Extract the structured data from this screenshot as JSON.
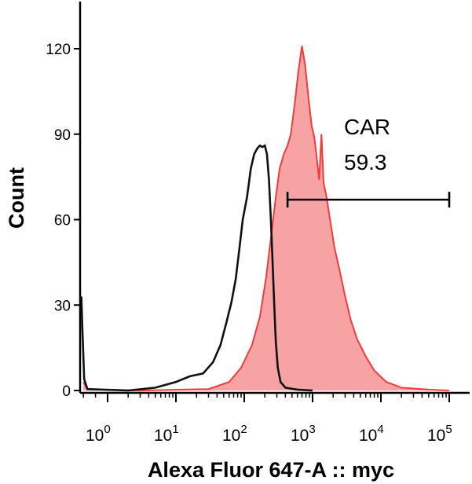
{
  "chart_data": {
    "type": "area",
    "title": "",
    "xlabel": "Alexa Fluor 647-A :: myc",
    "ylabel": "Count",
    "x_scale": "biexponential",
    "ylim": [
      0,
      140
    ],
    "y_ticks": [
      0,
      30,
      60,
      90,
      120
    ],
    "x_ticks": [
      {
        "value": 1,
        "base": "10",
        "exp": "0"
      },
      {
        "value": 10,
        "base": "10",
        "exp": "1"
      },
      {
        "value": 100,
        "base": "10",
        "exp": "2"
      },
      {
        "value": 1000,
        "base": "10",
        "exp": "3"
      },
      {
        "value": 10000,
        "base": "10",
        "exp": "4"
      },
      {
        "value": 100000,
        "base": "10",
        "exp": "5"
      }
    ],
    "series": [
      {
        "style": "filled",
        "color": "#f03c3c",
        "fill": "#f7a3a3",
        "points": [
          [
            0.4,
            3
          ],
          [
            0.5,
            0.5
          ],
          [
            3,
            0
          ],
          [
            30,
            0.5
          ],
          [
            60,
            3
          ],
          [
            90,
            8
          ],
          [
            130,
            16
          ],
          [
            170,
            26
          ],
          [
            210,
            40
          ],
          [
            250,
            55
          ],
          [
            290,
            68
          ],
          [
            330,
            78
          ],
          [
            380,
            83
          ],
          [
            430,
            86
          ],
          [
            480,
            90
          ],
          [
            550,
            101
          ],
          [
            620,
            112
          ],
          [
            700,
            121
          ],
          [
            780,
            114
          ],
          [
            870,
            103
          ],
          [
            970,
            93
          ],
          [
            1060,
            89
          ],
          [
            1160,
            81
          ],
          [
            1250,
            74
          ],
          [
            1350,
            90
          ],
          [
            1450,
            73
          ],
          [
            1600,
            68
          ],
          [
            1800,
            60
          ],
          [
            2100,
            50
          ],
          [
            2500,
            42
          ],
          [
            3000,
            33
          ],
          [
            3600,
            25
          ],
          [
            4500,
            18
          ],
          [
            6000,
            12
          ],
          [
            8000,
            7
          ],
          [
            12000,
            3
          ],
          [
            20000,
            1
          ],
          [
            50000,
            0.3
          ],
          [
            100000,
            0
          ]
        ]
      },
      {
        "style": "outline",
        "color": "#111111",
        "points": [
          [
            0.35,
            33
          ],
          [
            0.38,
            20
          ],
          [
            0.42,
            4
          ],
          [
            0.5,
            0.5
          ],
          [
            2,
            0
          ],
          [
            5,
            1
          ],
          [
            10,
            3
          ],
          [
            16,
            5
          ],
          [
            25,
            6
          ],
          [
            35,
            10
          ],
          [
            45,
            16
          ],
          [
            55,
            24
          ],
          [
            65,
            31
          ],
          [
            75,
            39
          ],
          [
            85,
            50
          ],
          [
            95,
            60
          ],
          [
            110,
            68
          ],
          [
            125,
            78
          ],
          [
            140,
            83
          ],
          [
            155,
            85
          ],
          [
            170,
            86
          ],
          [
            185,
            85.5
          ],
          [
            200,
            86
          ],
          [
            215,
            83
          ],
          [
            230,
            74
          ],
          [
            245,
            60
          ],
          [
            260,
            45
          ],
          [
            275,
            30
          ],
          [
            290,
            17
          ],
          [
            310,
            8
          ],
          [
            340,
            3
          ],
          [
            400,
            1
          ],
          [
            600,
            0.3
          ],
          [
            1000,
            0
          ]
        ]
      }
    ],
    "gate": {
      "label": "CAR",
      "value": "59.3",
      "from": 430,
      "to": 100000,
      "y": 67
    }
  }
}
